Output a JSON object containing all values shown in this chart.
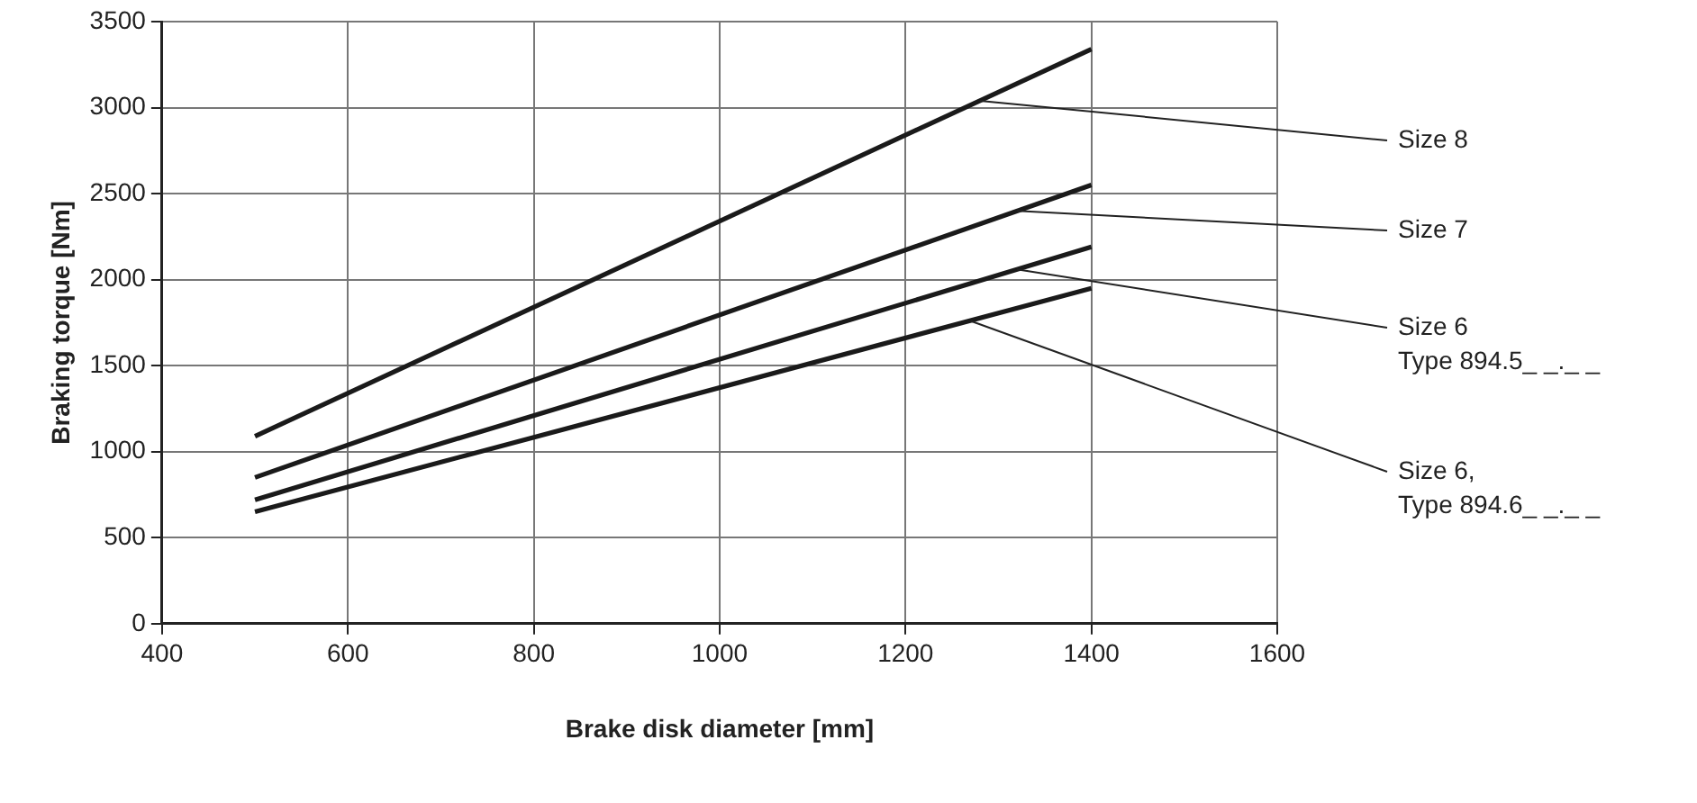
{
  "chart_data": {
    "type": "line",
    "xlabel": "Brake disk diameter [mm]",
    "ylabel": "Braking torque [Nm]",
    "xlim": [
      400,
      1600
    ],
    "xticks": [
      400,
      600,
      800,
      1000,
      1200,
      1400,
      1600
    ],
    "ylim": [
      0,
      3500
    ],
    "yticks": [
      0,
      500,
      1000,
      1500,
      2000,
      2500,
      3000,
      3500
    ],
    "x": [
      500,
      1400
    ],
    "grid": true,
    "legend": false,
    "marker": "none",
    "line_style": "solid",
    "series": [
      {
        "color": "#1a1a1a",
        "values": [
          1090,
          3340
        ]
      },
      {
        "color": "#1a1a1a",
        "values": [
          850,
          2550
        ]
      },
      {
        "color": "#1a1a1a",
        "values": [
          720,
          2190
        ]
      },
      {
        "color": "#1a1a1a",
        "values": [
          650,
          1950
        ]
      }
    ],
    "annotations": [
      {
        "text": "Size 8",
        "x": 1280,
        "y": 3040
      },
      {
        "text": "Size 7",
        "x": 1320,
        "y": 2400
      },
      {
        "text": "Size 6\nType 894.5_ _._ _",
        "x": 1320,
        "y": 2060
      },
      {
        "text": "Size 6,\nType 894.6_ _._ _",
        "x": 1270,
        "y": 1760
      }
    ]
  }
}
